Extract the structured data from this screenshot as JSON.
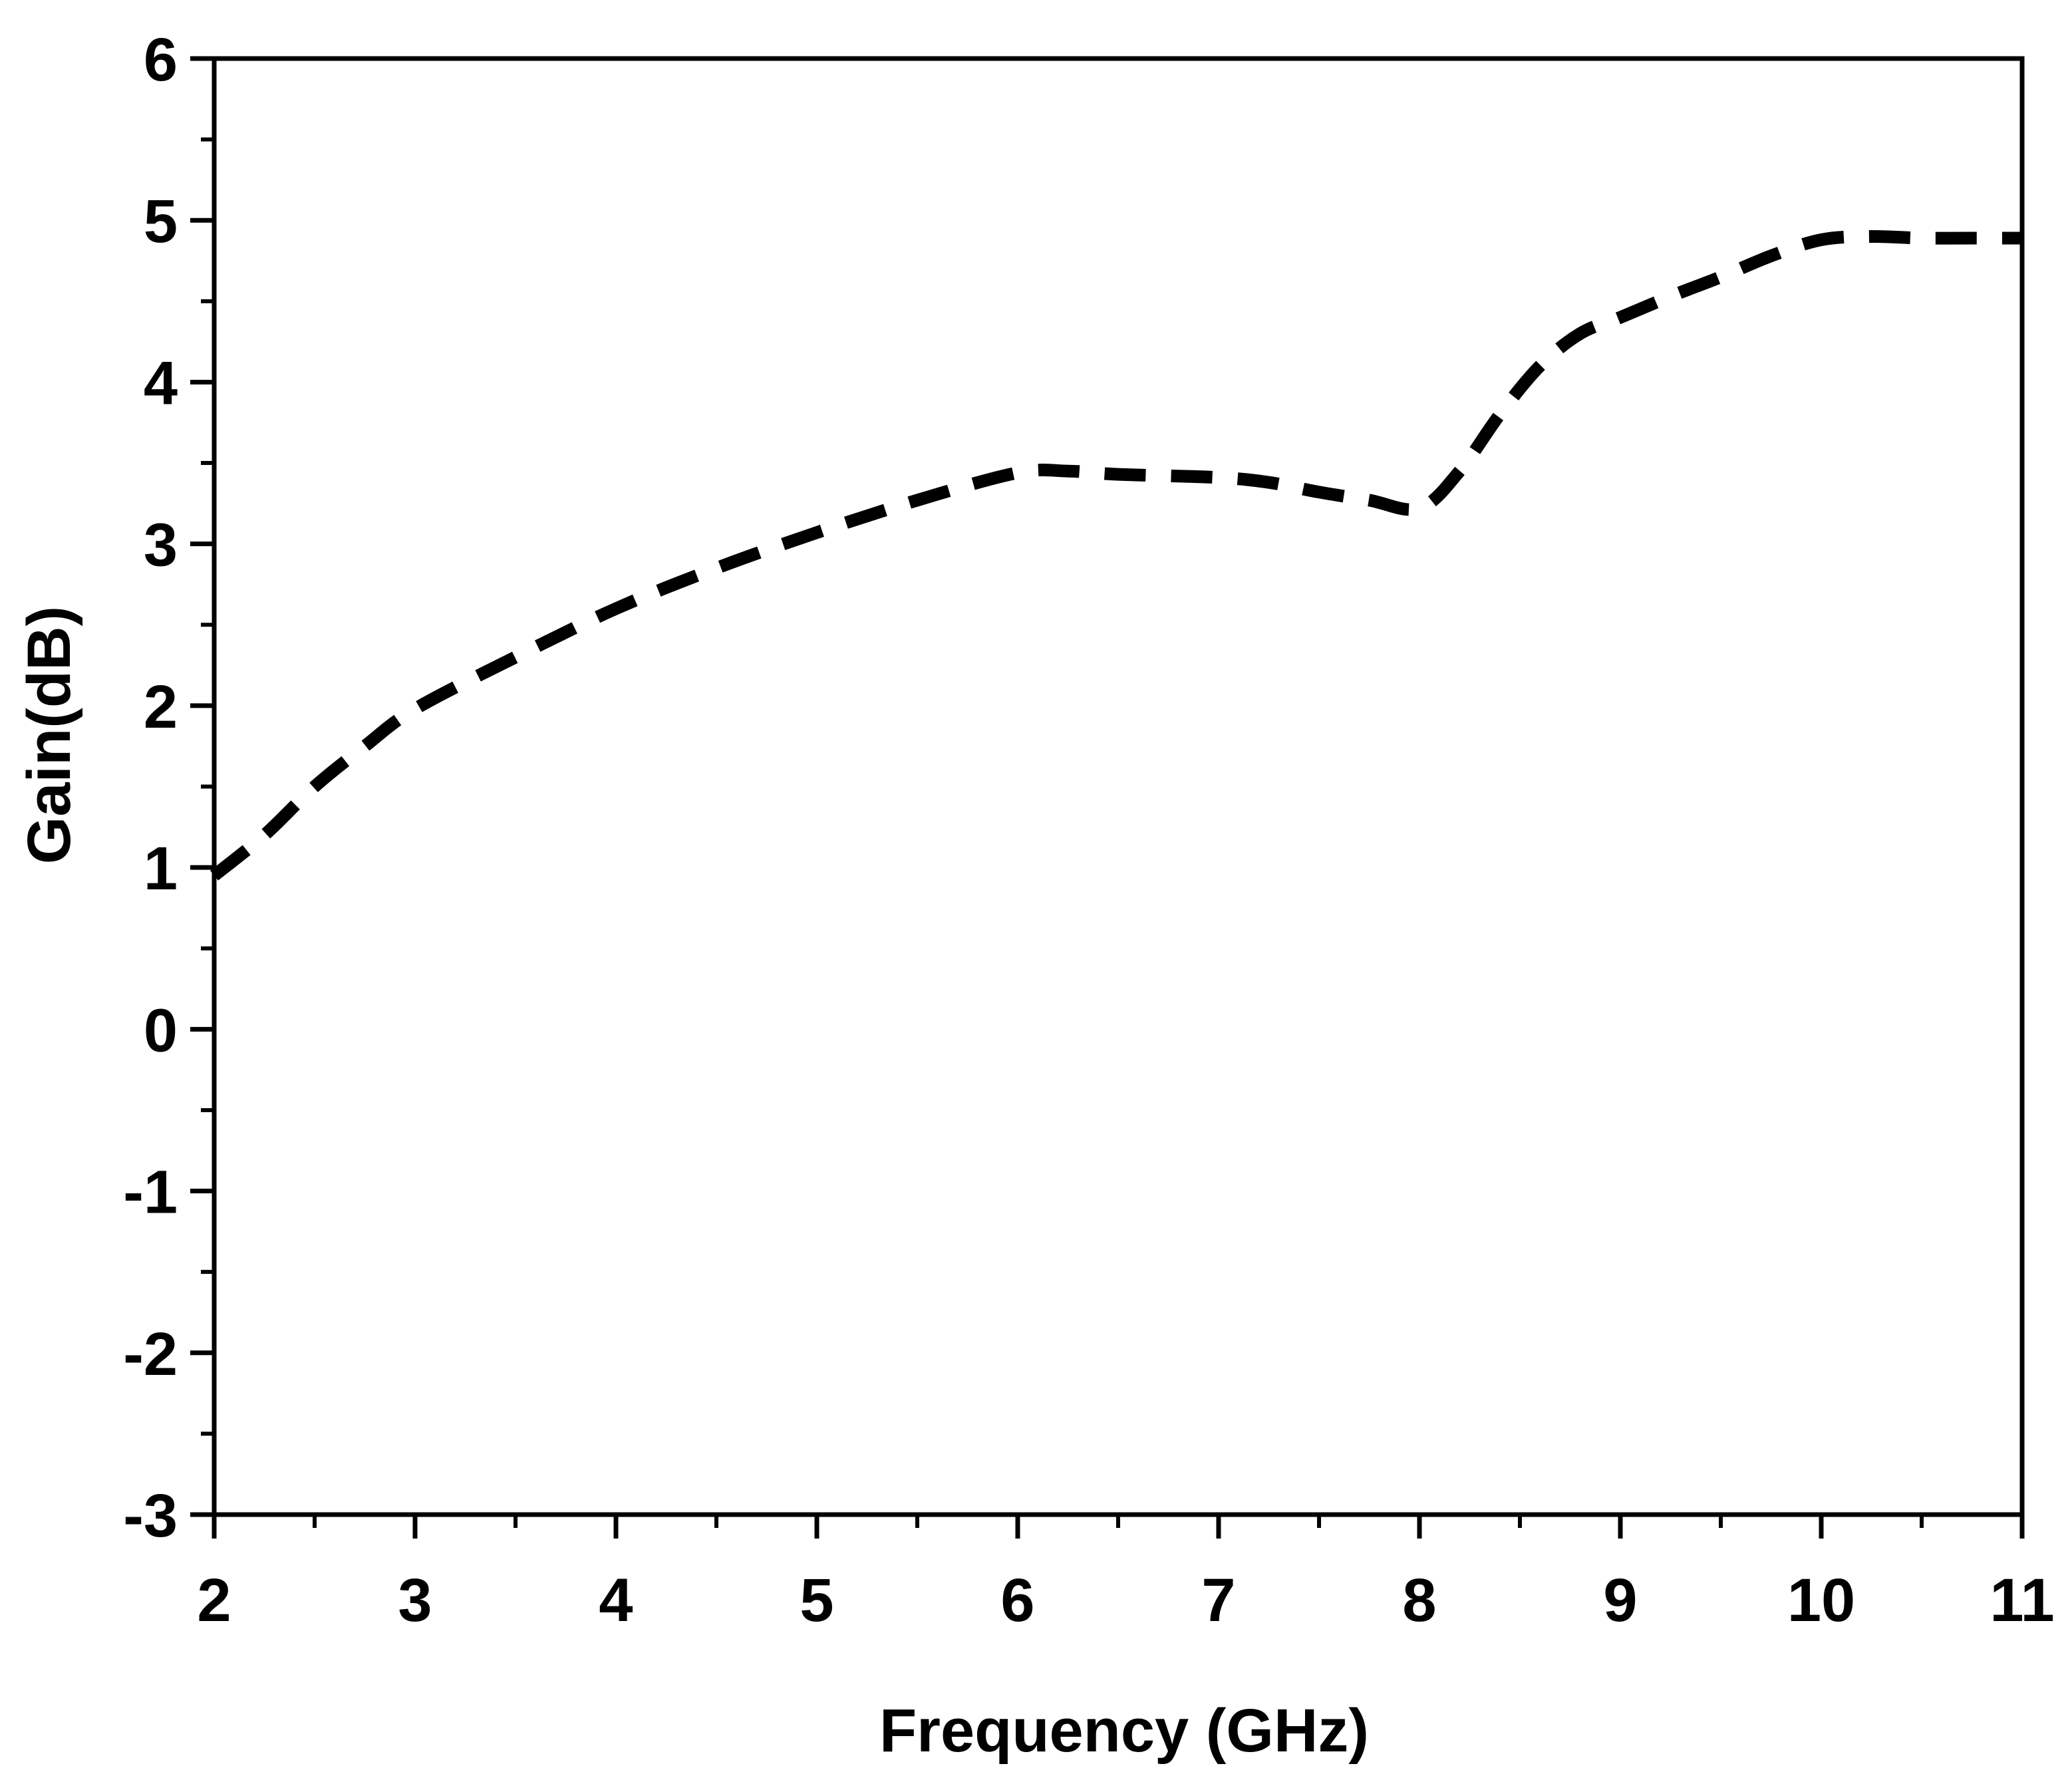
{
  "chart_data": {
    "type": "line",
    "title": "",
    "xlabel": "Frequency (GHz)",
    "ylabel": "Gain(dB)",
    "xlim": [
      2,
      11
    ],
    "ylim": [
      -3,
      6
    ],
    "x_ticks": [
      2,
      3,
      4,
      5,
      6,
      7,
      8,
      9,
      10,
      11
    ],
    "x_tick_labels": [
      "2",
      "3",
      "4",
      "5",
      "6",
      "7",
      "8",
      "9",
      "10",
      "11"
    ],
    "y_ticks": [
      -3,
      -2,
      -1,
      0,
      1,
      2,
      3,
      4,
      5,
      6
    ],
    "y_tick_labels": [
      "-3",
      "-2",
      "-1",
      "0",
      "1",
      "2",
      "3",
      "4",
      "5",
      "6"
    ],
    "x_minor_step": 0.5,
    "y_minor_step": 0.5,
    "grid": false,
    "series": [
      {
        "name": "Gain",
        "line_style": "dashed",
        "color": "#000000",
        "x": [
          2.0,
          2.25,
          2.5,
          2.75,
          3.0,
          3.5,
          4.0,
          4.5,
          5.0,
          5.5,
          6.0,
          6.25,
          6.5,
          7.0,
          7.25,
          7.5,
          7.75,
          8.0,
          8.2,
          8.4,
          8.6,
          8.8,
          9.0,
          9.25,
          9.5,
          9.75,
          10.0,
          10.25,
          10.5,
          10.75,
          11.0
        ],
        "y": [
          0.95,
          1.2,
          1.5,
          1.75,
          1.98,
          2.3,
          2.6,
          2.85,
          3.07,
          3.27,
          3.44,
          3.45,
          3.43,
          3.41,
          3.38,
          3.32,
          3.27,
          3.22,
          3.45,
          3.8,
          4.1,
          4.3,
          4.4,
          4.53,
          4.65,
          4.78,
          4.88,
          4.9,
          4.89,
          4.89,
          4.89
        ]
      }
    ]
  }
}
